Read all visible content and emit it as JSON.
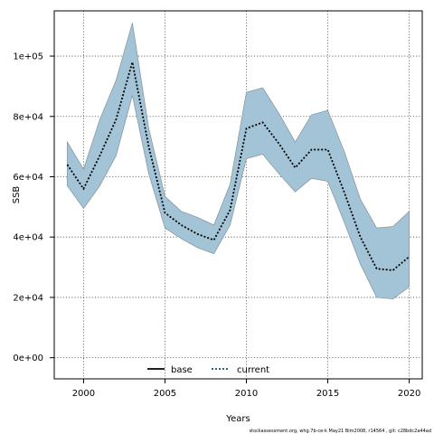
{
  "chart_data": {
    "type": "area",
    "xlabel": "Years",
    "ylabel": "SSB",
    "xlim": [
      1998.2,
      2020.8
    ],
    "ylim": [
      -7000,
      115000
    ],
    "x_ticks": [
      2000,
      2005,
      2010,
      2015,
      2020
    ],
    "x_tick_labels": [
      "2000",
      "2005",
      "2010",
      "2015",
      "2020"
    ],
    "y_ticks": [
      0,
      20000,
      40000,
      60000,
      80000,
      100000
    ],
    "y_tick_labels": [
      "0e+00",
      "2e+04",
      "4e+04",
      "6e+04",
      "8e+04",
      "1e+05"
    ],
    "grid": true,
    "grid_style": "dotted",
    "x": [
      1999,
      2000,
      2001,
      2002,
      2003,
      2004,
      2005,
      2006,
      2007,
      2008,
      2009,
      2010,
      2011,
      2012,
      2013,
      2014,
      2015,
      2016,
      2017,
      2018,
      2019,
      2020
    ],
    "series": [
      {
        "name": "current",
        "line_style": "dotted",
        "color": "#1a4f6e",
        "values": [
          64000,
          56000,
          67000,
          79000,
          98000,
          70000,
          48000,
          44000,
          41000,
          39000,
          49000,
          76000,
          78000,
          71000,
          63000,
          69000,
          69000,
          55000,
          40000,
          29500,
          29000,
          33500
        ]
      }
    ],
    "band": {
      "color": "#a3c4d6",
      "edge_color": "#8a9aa4",
      "lower": [
        57000,
        49500,
        57000,
        67000,
        87000,
        61000,
        43000,
        39500,
        36500,
        34500,
        44000,
        66000,
        67500,
        61000,
        55000,
        59500,
        58500,
        45000,
        31000,
        20000,
        19500,
        23500
      ],
      "upper": [
        71500,
        62500,
        79000,
        92000,
        111000,
        76000,
        53500,
        48500,
        46500,
        44000,
        57500,
        88000,
        89500,
        81000,
        71500,
        80500,
        82000,
        68500,
        52500,
        43000,
        43500,
        48500
      ]
    },
    "legend": {
      "position": "bottom",
      "entries": [
        {
          "label": "base",
          "line_style": "solid",
          "color": "#000000"
        },
        {
          "label": "current",
          "line_style": "dotted",
          "color": "#1a4f6e"
        }
      ]
    }
  },
  "footer_text": "stockassessment.org,  whg.7b-ce-k  May21  Bim2008, r14564 ,  git:  c28bdc2a44ad"
}
